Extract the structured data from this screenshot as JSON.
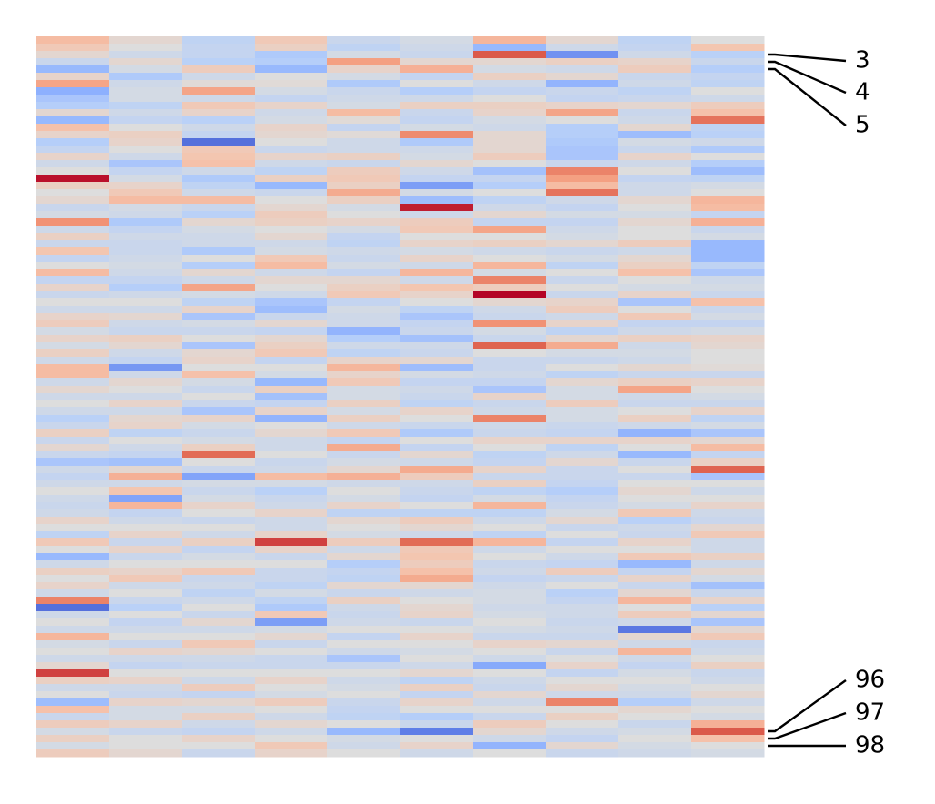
{
  "chart_data": {
    "type": "heatmap",
    "n_rows": 100,
    "n_cols": 10,
    "colormap": "coolwarm",
    "value_range": [
      -3,
      3
    ],
    "row_labels_shown": [
      {
        "row": 3,
        "label": "3"
      },
      {
        "row": 4,
        "label": "4"
      },
      {
        "row": 5,
        "label": "5"
      },
      {
        "row": 96,
        "label": "96"
      },
      {
        "row": 97,
        "label": "97"
      },
      {
        "row": 98,
        "label": "98"
      }
    ],
    "values": [
      [
        0.9,
        0.2,
        -0.6,
        0.6,
        -0.4,
        -0.2,
        1.0,
        0.2,
        -0.6,
        0.0
      ],
      [
        0.6,
        0.0,
        -0.5,
        0.4,
        -0.6,
        -0.3,
        -1.3,
        -0.3,
        -0.5,
        0.7
      ],
      [
        0.2,
        -0.3,
        -0.5,
        -0.9,
        -0.2,
        -0.4,
        2.3,
        -2.0,
        -0.3,
        -0.7
      ],
      [
        -0.4,
        0.2,
        -0.7,
        -0.8,
        1.4,
        0.2,
        0.2,
        0.4,
        0.3,
        -0.4
      ],
      [
        -1.3,
        -0.2,
        0.5,
        -1.3,
        0.3,
        1.1,
        -0.2,
        -0.3,
        0.5,
        -0.8
      ],
      [
        0.3,
        -0.9,
        -0.3,
        0.0,
        -0.2,
        -0.5,
        0.4,
        0.2,
        -0.4,
        -0.5
      ],
      [
        1.3,
        -0.3,
        0.1,
        0.1,
        -0.9,
        0.0,
        -0.3,
        -1.4,
        -0.3,
        -0.6
      ],
      [
        -1.5,
        -0.2,
        1.3,
        -0.2,
        -0.4,
        -0.8,
        -0.5,
        -0.4,
        -0.6,
        0.0
      ],
      [
        -1.0,
        -0.2,
        -0.3,
        -0.5,
        -0.3,
        -0.3,
        0.0,
        -0.5,
        -0.4,
        -0.3
      ],
      [
        -0.8,
        -0.6,
        0.6,
        0.3,
        -0.2,
        0.4,
        0.4,
        0.3,
        0.2,
        0.5
      ],
      [
        0.2,
        -0.3,
        0.3,
        -0.3,
        0.9,
        -0.4,
        0.3,
        1.3,
        -0.4,
        0.8
      ],
      [
        -1.3,
        -0.5,
        -0.7,
        -0.2,
        0.1,
        -0.5,
        -0.2,
        0.0,
        -0.3,
        2.0
      ],
      [
        0.8,
        0.0,
        -0.3,
        0.3,
        -0.5,
        -0.2,
        -0.3,
        -0.8,
        0.2,
        -0.6
      ],
      [
        0.3,
        0.4,
        -0.5,
        0.2,
        0.1,
        1.7,
        0.2,
        -0.8,
        -1.2,
        -0.7
      ],
      [
        -0.8,
        0.3,
        -2.5,
        0.0,
        -0.3,
        -0.9,
        0.2,
        -0.9,
        -0.2,
        -0.3
      ],
      [
        -0.5,
        0.0,
        0.6,
        -0.4,
        -0.3,
        -0.3,
        0.2,
        -1.0,
        -0.4,
        -0.9
      ],
      [
        0.3,
        -0.3,
        0.7,
        0.3,
        0.4,
        -0.2,
        0.5,
        -1.0,
        0.3,
        0.0
      ],
      [
        -0.3,
        -1.0,
        0.8,
        -0.3,
        -0.4,
        0.2,
        0.0,
        -0.4,
        -0.3,
        -0.8
      ],
      [
        0.0,
        -0.5,
        -0.3,
        -0.6,
        0.5,
        -0.3,
        -1.1,
        1.8,
        0.0,
        -1.2
      ],
      [
        2.9,
        -0.2,
        -0.9,
        0.4,
        0.6,
        -0.5,
        -0.5,
        1.4,
        -0.5,
        -0.6
      ],
      [
        0.4,
        0.3,
        -0.6,
        -1.3,
        0.4,
        -1.8,
        -0.8,
        0.9,
        -0.3,
        -0.2
      ],
      [
        0.0,
        0.6,
        -0.3,
        -0.4,
        1.2,
        -0.2,
        0.0,
        2.0,
        -0.3,
        0.0
      ],
      [
        0.2,
        0.9,
        0.9,
        0.0,
        0.4,
        -1.2,
        -0.6,
        -0.3,
        0.2,
        1.0
      ],
      [
        -0.4,
        -0.2,
        -0.4,
        0.2,
        -0.2,
        2.8,
        -0.3,
        -0.5,
        0.0,
        0.9
      ],
      [
        -0.2,
        -0.3,
        -0.7,
        0.5,
        0.0,
        -0.3,
        0.2,
        -0.2,
        -0.2,
        -0.5
      ],
      [
        1.6,
        -0.9,
        0.2,
        0.4,
        0.3,
        0.5,
        -0.5,
        -0.5,
        0.2,
        1.1
      ],
      [
        -0.3,
        -0.5,
        -0.2,
        0.0,
        -0.2,
        0.6,
        1.3,
        -0.3,
        0.0,
        -0.4
      ],
      [
        0.4,
        -0.3,
        -0.3,
        0.2,
        -0.5,
        0.0,
        0.0,
        -0.2,
        0.0,
        -0.2
      ],
      [
        -0.4,
        -0.4,
        -0.3,
        -0.3,
        -0.6,
        0.3,
        0.4,
        0.2,
        0.5,
        -1.3
      ],
      [
        0.7,
        -0.4,
        -0.9,
        -0.2,
        -0.3,
        -0.2,
        -0.3,
        -0.4,
        -0.3,
        -1.3
      ],
      [
        -0.5,
        -0.3,
        0.0,
        0.6,
        -0.4,
        0.3,
        0.0,
        -0.2,
        0.2,
        -1.3
      ],
      [
        0.0,
        -0.2,
        -0.8,
        0.9,
        -0.2,
        -0.3,
        1.0,
        -0.6,
        0.4,
        -0.6
      ],
      [
        0.9,
        -0.3,
        0.2,
        -0.3,
        -0.5,
        1.0,
        -0.2,
        0.0,
        0.8,
        -1.0
      ],
      [
        -0.5,
        -0.5,
        -0.3,
        0.2,
        0.2,
        -0.3,
        1.8,
        -0.4,
        0.0,
        -0.3
      ],
      [
        0.3,
        -0.8,
        1.3,
        0.0,
        0.4,
        0.7,
        0.5,
        0.0,
        -0.2,
        -0.2
      ],
      [
        -0.4,
        -0.3,
        -0.2,
        -0.3,
        0.6,
        0.3,
        3.0,
        -0.4,
        0.3,
        -0.4
      ],
      [
        0.0,
        0.0,
        -0.6,
        -1.0,
        -0.5,
        0.0,
        0.2,
        0.3,
        -1.0,
        0.8
      ],
      [
        -0.3,
        -0.3,
        0.3,
        -1.2,
        -0.2,
        -0.6,
        -0.3,
        0.5,
        0.0,
        -0.4
      ],
      [
        0.3,
        0.2,
        -1.0,
        -0.4,
        -0.3,
        -1.0,
        -0.4,
        -0.3,
        0.6,
        -0.2
      ],
      [
        0.5,
        -0.3,
        -0.2,
        0.2,
        -0.3,
        -0.5,
        1.6,
        0.3,
        -0.5,
        -0.5
      ],
      [
        -0.2,
        -0.4,
        -0.4,
        -0.5,
        -1.4,
        -0.4,
        -0.2,
        -0.6,
        -0.3,
        -0.2
      ],
      [
        0.3,
        0.4,
        0.0,
        0.2,
        -0.8,
        -1.1,
        -0.4,
        0.2,
        0.4,
        0.3
      ],
      [
        -0.2,
        0.2,
        -1.0,
        0.4,
        -0.3,
        -0.3,
        2.2,
        1.2,
        -0.3,
        0.2
      ],
      [
        0.4,
        -0.3,
        0.2,
        0.6,
        -0.6,
        -0.4,
        0.0,
        -0.2,
        -0.2,
        0.0
      ],
      [
        -0.3,
        -0.5,
        0.3,
        -0.5,
        0.3,
        0.2,
        -0.4,
        -0.4,
        -0.3,
        0.0
      ],
      [
        0.9,
        -1.9,
        0.0,
        0.0,
        1.0,
        -1.2,
        -0.4,
        0.0,
        0.2,
        0.1
      ],
      [
        0.9,
        -0.3,
        0.8,
        -0.2,
        0.3,
        -0.2,
        -0.3,
        -0.6,
        -0.4,
        -0.4
      ],
      [
        -0.3,
        0.2,
        -0.2,
        -1.3,
        0.6,
        -0.5,
        -0.5,
        0.2,
        0.4,
        0.3
      ],
      [
        0.2,
        0.0,
        -0.4,
        0.4,
        -0.2,
        -0.3,
        -1.0,
        -0.2,
        1.3,
        0.0
      ],
      [
        -0.3,
        -0.3,
        0.0,
        -1.1,
        -0.2,
        -0.4,
        0.3,
        -0.2,
        -0.3,
        -0.2
      ],
      [
        0.0,
        0.3,
        -0.4,
        -0.5,
        0.4,
        -0.6,
        -0.4,
        0.5,
        -0.4,
        -0.4
      ],
      [
        -0.3,
        -0.3,
        -1.0,
        0.3,
        -0.2,
        0.3,
        -0.3,
        -0.2,
        0.0,
        0.3
      ],
      [
        -0.7,
        0.2,
        0.3,
        -1.4,
        0.4,
        0.0,
        1.8,
        -0.2,
        0.4,
        -0.6
      ],
      [
        -0.4,
        0.3,
        -0.2,
        0.0,
        -0.3,
        -0.4,
        -0.3,
        -0.4,
        -0.3,
        -0.2
      ],
      [
        0.4,
        -0.6,
        -0.4,
        0.2,
        0.6,
        -0.9,
        -0.4,
        -0.5,
        -1.4,
        -1.0
      ],
      [
        -0.4,
        0.0,
        -0.2,
        -0.3,
        -0.5,
        0.0,
        0.3,
        0.3,
        0.3,
        0.2
      ],
      [
        0.2,
        -0.3,
        0.4,
        -0.3,
        1.2,
        -0.5,
        0.0,
        -0.6,
        0.0,
        0.9
      ],
      [
        -0.4,
        -0.5,
        2.1,
        0.0,
        -0.4,
        0.2,
        -0.6,
        -0.3,
        -1.3,
        -0.5
      ],
      [
        -1.0,
        -1.1,
        0.0,
        -0.4,
        -0.2,
        -0.3,
        -0.5,
        0.2,
        -0.4,
        0.4
      ],
      [
        -0.3,
        0.2,
        -0.4,
        -0.3,
        0.2,
        1.2,
        0.3,
        -0.4,
        0.0,
        2.2
      ],
      [
        -0.5,
        1.1,
        -1.7,
        0.9,
        1.1,
        0.5,
        -0.4,
        -0.4,
        -0.4,
        -1.0
      ],
      [
        -0.3,
        -0.3,
        -0.2,
        -0.2,
        -0.3,
        -0.3,
        0.4,
        -0.5,
        0.0,
        0.0
      ],
      [
        0.0,
        0.7,
        -0.4,
        -0.7,
        0.0,
        -0.4,
        -0.6,
        -0.8,
        0.2,
        -0.3
      ],
      [
        -0.3,
        -1.7,
        -0.2,
        -0.4,
        -0.2,
        -0.5,
        -0.2,
        -0.5,
        0.0,
        0.0
      ],
      [
        -0.4,
        1.0,
        0.3,
        -0.3,
        0.3,
        0.0,
        1.0,
        -0.4,
        -0.2,
        0.3
      ],
      [
        -0.3,
        -0.5,
        0.0,
        0.3,
        -0.6,
        -0.6,
        -0.6,
        -0.2,
        0.6,
        -0.3
      ],
      [
        0.3,
        -0.3,
        -0.4,
        -0.3,
        0.2,
        0.5,
        -0.3,
        0.2,
        -0.7,
        -0.4
      ],
      [
        0.0,
        0.0,
        0.0,
        -0.3,
        0.0,
        0.2,
        0.0,
        -0.4,
        -0.3,
        0.2
      ],
      [
        -0.6,
        0.3,
        -0.3,
        0.3,
        -0.2,
        -0.3,
        -0.6,
        0.0,
        -0.4,
        0.6
      ],
      [
        0.6,
        -0.4,
        0.4,
        2.5,
        0.5,
        2.1,
        1.0,
        -0.5,
        0.3,
        -0.3
      ],
      [
        0.0,
        0.3,
        -0.5,
        0.3,
        -0.3,
        0.6,
        -0.3,
        0.0,
        0.0,
        -0.3
      ],
      [
        -1.3,
        -0.4,
        -0.2,
        -0.4,
        0.2,
        0.7,
        0.0,
        -0.3,
        0.6,
        0.4
      ],
      [
        -0.3,
        0.0,
        0.0,
        0.0,
        -0.8,
        0.5,
        -0.4,
        -0.5,
        -1.3,
        -0.3
      ],
      [
        0.4,
        0.3,
        0.6,
        -0.4,
        -0.5,
        0.8,
        -0.3,
        0.5,
        -0.5,
        0.2
      ],
      [
        0.0,
        0.6,
        -0.4,
        -0.4,
        -0.6,
        1.2,
        -0.5,
        -0.4,
        0.3,
        -0.2
      ],
      [
        0.3,
        -0.3,
        -0.3,
        -0.6,
        0.2,
        0.2,
        -0.3,
        0.0,
        -0.4,
        -1.1
      ],
      [
        -0.3,
        0.0,
        -0.6,
        -0.2,
        -0.4,
        -0.3,
        -0.2,
        -0.7,
        0.2,
        -0.4
      ],
      [
        1.8,
        -0.4,
        -0.3,
        -0.6,
        0.4,
        0.0,
        -0.2,
        -0.5,
        1.0,
        0.3
      ],
      [
        -2.5,
        -0.7,
        0.0,
        -0.9,
        -0.3,
        0.2,
        -0.3,
        -0.3,
        0.0,
        -0.7
      ],
      [
        -0.3,
        0.0,
        -0.4,
        0.6,
        -0.4,
        0.3,
        -0.2,
        -0.3,
        0.5,
        0.2
      ],
      [
        0.0,
        -0.5,
        0.2,
        -1.8,
        -0.3,
        -0.4,
        0.0,
        -0.4,
        -0.3,
        -1.0
      ],
      [
        -0.3,
        -0.3,
        -0.3,
        -0.2,
        0.0,
        0.0,
        -0.2,
        -0.3,
        -2.4,
        0.2
      ],
      [
        1.0,
        0.0,
        0.0,
        0.2,
        -0.5,
        0.3,
        -0.4,
        -0.4,
        0.2,
        0.6
      ],
      [
        -0.2,
        -0.4,
        0.6,
        -0.4,
        0.0,
        0.0,
        0.3,
        0.2,
        -0.3,
        -0.4
      ],
      [
        0.0,
        0.3,
        0.2,
        0.0,
        -0.3,
        -0.2,
        0.0,
        -0.4,
        1.0,
        -0.3
      ],
      [
        -0.3,
        -0.3,
        -0.3,
        -0.4,
        -1.0,
        0.0,
        -0.3,
        0.0,
        -0.3,
        0.0
      ],
      [
        0.2,
        -0.5,
        -0.4,
        -0.4,
        -0.4,
        -0.3,
        -1.6,
        0.3,
        -0.5,
        0.4
      ],
      [
        2.5,
        0.0,
        0.0,
        0.0,
        0.0,
        0.2,
        0.0,
        -0.5,
        -0.2,
        -0.4
      ],
      [
        0.4,
        0.3,
        -0.3,
        0.3,
        -0.3,
        -0.6,
        -0.3,
        0.0,
        0.0,
        -0.3
      ],
      [
        -0.3,
        -0.3,
        0.5,
        0.0,
        -0.2,
        0.4,
        -0.4,
        0.2,
        -0.2,
        0.0
      ],
      [
        0.0,
        -0.4,
        -0.5,
        -0.2,
        0.0,
        -0.5,
        0.2,
        -0.3,
        -0.3,
        0.2
      ],
      [
        -1.2,
        0.3,
        0.2,
        0.5,
        -0.4,
        0.3,
        -0.3,
        1.8,
        -0.8,
        -0.3
      ],
      [
        0.8,
        -0.2,
        -0.2,
        0.0,
        -0.5,
        0.0,
        0.0,
        0.0,
        0.2,
        0.0
      ],
      [
        -0.4,
        -0.2,
        0.4,
        -0.3,
        -0.6,
        -0.8,
        -0.4,
        0.4,
        0.0,
        -0.2
      ],
      [
        0.5,
        0.3,
        -0.3,
        0.2,
        0.0,
        -0.4,
        0.5,
        0.0,
        -0.4,
        1.1
      ],
      [
        -0.2,
        -0.4,
        -0.5,
        -0.3,
        -1.3,
        -2.3,
        0.2,
        -0.3,
        -0.2,
        2.3
      ],
      [
        0.4,
        0.0,
        0.3,
        0.0,
        -0.2,
        0.0,
        -0.3,
        -0.5,
        0.0,
        0.8
      ],
      [
        -0.2,
        0.0,
        0.0,
        0.6,
        -0.3,
        0.3,
        -1.4,
        0.2,
        -0.2,
        0.0
      ],
      [
        0.5,
        0.2,
        -0.4,
        0.3,
        0.0,
        -0.3,
        0.0,
        -0.4,
        -0.3,
        -0.2
      ]
    ]
  }
}
